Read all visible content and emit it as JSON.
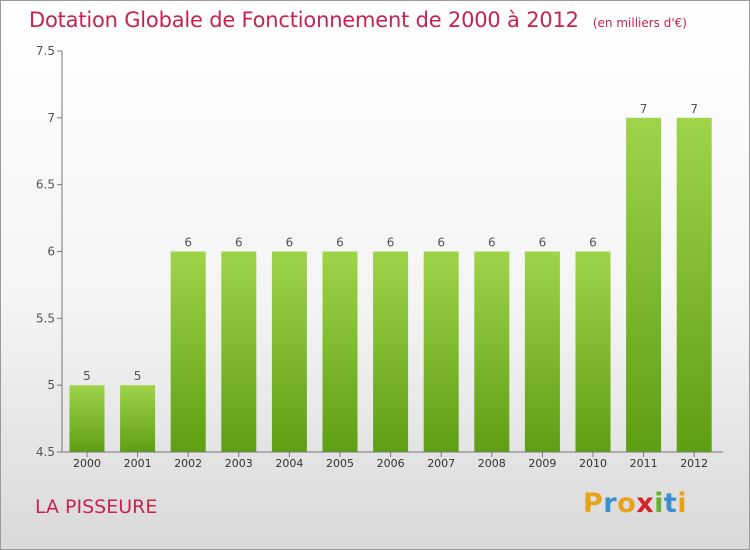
{
  "header": {
    "title": "Dotation Globale de Fonctionnement de 2000 à 2012",
    "subtitle": "(en milliers d'€)"
  },
  "footer": {
    "commune": "LA PISSEURE",
    "logo_text": "Proxiti"
  },
  "colors": {
    "title": "#c8234e",
    "bar_top": "#9fd44a",
    "bar_bottom": "#5e9e12",
    "axis": "#777777",
    "logo_letters": [
      "#e8a21a",
      "#3a8fd0",
      "#e8a21a",
      "#d6222a",
      "#66b030",
      "#3a8fd0",
      "#e8a21a"
    ]
  },
  "chart_data": {
    "type": "bar",
    "categories": [
      "2000",
      "2001",
      "2002",
      "2003",
      "2004",
      "2005",
      "2006",
      "2007",
      "2008",
      "2009",
      "2010",
      "2011",
      "2012"
    ],
    "values": [
      5,
      5,
      6,
      6,
      6,
      6,
      6,
      6,
      6,
      6,
      6,
      7,
      7
    ],
    "data_labels": [
      "5",
      "5",
      "6",
      "6",
      "6",
      "6",
      "6",
      "6",
      "6",
      "6",
      "6",
      "7",
      "7"
    ],
    "ylim": [
      4.5,
      7.5
    ],
    "yticks": [
      4.5,
      5,
      5.5,
      6,
      6.5,
      7,
      7.5
    ],
    "ytick_labels": [
      "4.5",
      "5",
      "5.5",
      "6",
      "6.5",
      "7",
      "7.5"
    ],
    "grid": false,
    "xlabel": "",
    "ylabel": ""
  }
}
